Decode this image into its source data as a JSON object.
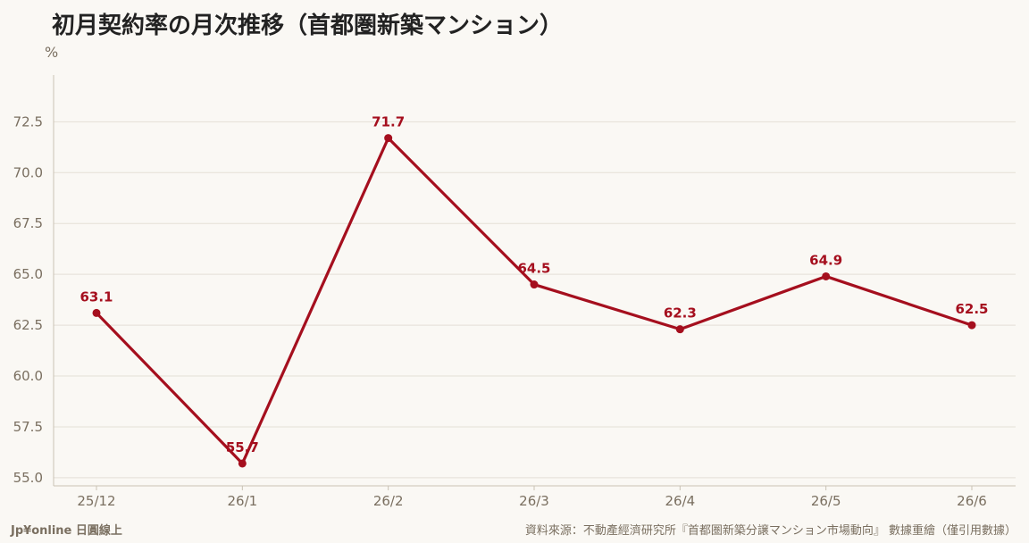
{
  "header": {
    "title": "初月契約率の月次推移（首都圏新築マンション）",
    "unit": "%"
  },
  "footer": {
    "brand": "Jp¥online 日圓線上",
    "source": "資料來源：不動產經濟研究所『首都圏新築分譲マンション市場動向』 數據重繪（僅引用數據）"
  },
  "colors": {
    "series": "#a50f1e",
    "axis_text": "#7a6f60",
    "grid": "#e4dfd6",
    "background": "#faf8f4"
  },
  "chart_data": {
    "type": "line",
    "title": "初月契約率の月次推移（首都圏新築マンション）",
    "ylabel": "%",
    "xlabel": "",
    "categories": [
      "25/12",
      "26/1",
      "26/2",
      "26/3",
      "26/4",
      "26/5",
      "26/6"
    ],
    "values": [
      63.1,
      55.7,
      71.7,
      64.5,
      62.3,
      64.9,
      62.5
    ],
    "value_labels": [
      "63.1",
      "55.7",
      "71.7",
      "64.5",
      "62.3",
      "64.9",
      "62.5"
    ],
    "yticks": [
      55.0,
      57.5,
      60.0,
      62.5,
      65.0,
      67.5,
      70.0,
      72.5
    ],
    "ytick_labels": [
      "55.0",
      "57.5",
      "60.0",
      "62.5",
      "65.0",
      "67.5",
      "70.0",
      "72.5"
    ],
    "ylim": [
      54.6,
      74.8
    ],
    "grid": true,
    "legend": "none"
  }
}
